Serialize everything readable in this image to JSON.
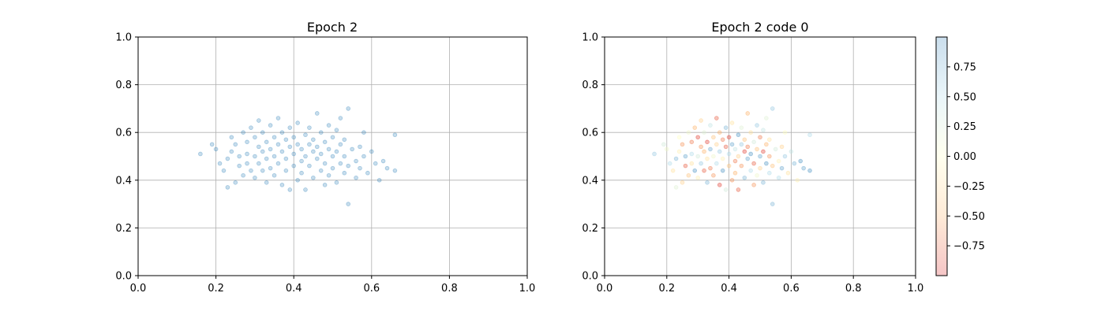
{
  "chart_data": [
    {
      "type": "scatter",
      "title": "Epoch 2",
      "xlabel": "",
      "ylabel": "",
      "xlim": [
        0.0,
        1.0
      ],
      "ylim": [
        0.0,
        1.0
      ],
      "xticks": [
        "0.0",
        "0.2",
        "0.4",
        "0.6",
        "0.8",
        "1.0"
      ],
      "yticks": [
        "0.0",
        "0.2",
        "0.4",
        "0.6",
        "0.8",
        "1.0"
      ],
      "grid": true,
      "marker_color": "#1f77b4",
      "marker_alpha": 0.25,
      "series": [
        {
          "points": [
            [
              0.16,
              0.51
            ],
            [
              0.19,
              0.55
            ],
            [
              0.2,
              0.53
            ],
            [
              0.21,
              0.47
            ],
            [
              0.22,
              0.44
            ],
            [
              0.23,
              0.49
            ],
            [
              0.23,
              0.37
            ],
            [
              0.24,
              0.52
            ],
            [
              0.24,
              0.58
            ],
            [
              0.25,
              0.39
            ],
            [
              0.25,
              0.55
            ],
            [
              0.26,
              0.5
            ],
            [
              0.26,
              0.46
            ],
            [
              0.27,
              0.6
            ],
            [
              0.27,
              0.42
            ],
            [
              0.28,
              0.56
            ],
            [
              0.28,
              0.51
            ],
            [
              0.28,
              0.47
            ],
            [
              0.29,
              0.44
            ],
            [
              0.29,
              0.62
            ],
            [
              0.3,
              0.58
            ],
            [
              0.3,
              0.5
            ],
            [
              0.3,
              0.41
            ],
            [
              0.31,
              0.54
            ],
            [
              0.31,
              0.47
            ],
            [
              0.31,
              0.65
            ],
            [
              0.32,
              0.44
            ],
            [
              0.32,
              0.6
            ],
            [
              0.32,
              0.52
            ],
            [
              0.33,
              0.39
            ],
            [
              0.33,
              0.56
            ],
            [
              0.33,
              0.49
            ],
            [
              0.34,
              0.63
            ],
            [
              0.34,
              0.45
            ],
            [
              0.34,
              0.53
            ],
            [
              0.35,
              0.58
            ],
            [
              0.35,
              0.42
            ],
            [
              0.35,
              0.5
            ],
            [
              0.36,
              0.66
            ],
            [
              0.36,
              0.47
            ],
            [
              0.36,
              0.55
            ],
            [
              0.37,
              0.38
            ],
            [
              0.37,
              0.52
            ],
            [
              0.37,
              0.6
            ],
            [
              0.38,
              0.44
            ],
            [
              0.38,
              0.57
            ],
            [
              0.38,
              0.49
            ],
            [
              0.39,
              0.36
            ],
            [
              0.39,
              0.54
            ],
            [
              0.39,
              0.62
            ],
            [
              0.4,
              0.46
            ],
            [
              0.4,
              0.51
            ],
            [
              0.4,
              0.58
            ],
            [
              0.41,
              0.4
            ],
            [
              0.41,
              0.55
            ],
            [
              0.41,
              0.64
            ],
            [
              0.42,
              0.48
            ],
            [
              0.42,
              0.53
            ],
            [
              0.42,
              0.43
            ],
            [
              0.43,
              0.59
            ],
            [
              0.43,
              0.5
            ],
            [
              0.43,
              0.36
            ],
            [
              0.44,
              0.55
            ],
            [
              0.44,
              0.46
            ],
            [
              0.44,
              0.62
            ],
            [
              0.45,
              0.52
            ],
            [
              0.45,
              0.41
            ],
            [
              0.45,
              0.57
            ],
            [
              0.46,
              0.49
            ],
            [
              0.46,
              0.68
            ],
            [
              0.46,
              0.54
            ],
            [
              0.47,
              0.44
            ],
            [
              0.47,
              0.6
            ],
            [
              0.47,
              0.51
            ],
            [
              0.48,
              0.38
            ],
            [
              0.48,
              0.56
            ],
            [
              0.48,
              0.47
            ],
            [
              0.49,
              0.63
            ],
            [
              0.49,
              0.53
            ],
            [
              0.49,
              0.42
            ],
            [
              0.5,
              0.58
            ],
            [
              0.5,
              0.5
            ],
            [
              0.5,
              0.45
            ],
            [
              0.51,
              0.61
            ],
            [
              0.51,
              0.52
            ],
            [
              0.51,
              0.39
            ],
            [
              0.52,
              0.55
            ],
            [
              0.52,
              0.47
            ],
            [
              0.52,
              0.66
            ],
            [
              0.53,
              0.5
            ],
            [
              0.53,
              0.43
            ],
            [
              0.53,
              0.57
            ],
            [
              0.54,
              0.7
            ],
            [
              0.54,
              0.46
            ],
            [
              0.54,
              0.3
            ],
            [
              0.55,
              0.53
            ],
            [
              0.56,
              0.48
            ],
            [
              0.56,
              0.41
            ],
            [
              0.57,
              0.54
            ],
            [
              0.57,
              0.45
            ],
            [
              0.58,
              0.6
            ],
            [
              0.58,
              0.5
            ],
            [
              0.59,
              0.43
            ],
            [
              0.6,
              0.52
            ],
            [
              0.61,
              0.47
            ],
            [
              0.62,
              0.4
            ],
            [
              0.63,
              0.48
            ],
            [
              0.64,
              0.45
            ],
            [
              0.66,
              0.59
            ],
            [
              0.66,
              0.44
            ]
          ]
        }
      ]
    },
    {
      "type": "scatter",
      "title": "Epoch 2 code 0",
      "xlabel": "",
      "ylabel": "",
      "xlim": [
        0.0,
        1.0
      ],
      "ylim": [
        0.0,
        1.0
      ],
      "xticks": [
        "0.0",
        "0.2",
        "0.4",
        "0.6",
        "0.8",
        "1.0"
      ],
      "yticks": [
        "0.0",
        "0.2",
        "0.4",
        "0.6",
        "0.8",
        "1.0"
      ],
      "grid": true,
      "marker_alpha": 0.35,
      "colormap": "RdYlBu",
      "colorbar": {
        "ticks": [
          "0.75",
          "0.50",
          "0.25",
          "0.00",
          "−0.25",
          "−0.50",
          "−0.75"
        ],
        "tick_values": [
          0.75,
          0.5,
          0.25,
          0.0,
          -0.25,
          -0.5,
          -0.75
        ],
        "range": [
          -1.0,
          1.0
        ],
        "stops": [
          "#d7191c",
          "#fdae61",
          "#ffffbf",
          "#abd9e9",
          "#2c7bb6"
        ]
      },
      "series": [
        {
          "points": [
            [
              0.16,
              0.51,
              0.6
            ],
            [
              0.19,
              0.55,
              0.3
            ],
            [
              0.2,
              0.53,
              0.1
            ],
            [
              0.21,
              0.47,
              0.5
            ],
            [
              0.22,
              0.44,
              -0.2
            ],
            [
              0.23,
              0.49,
              0.7
            ],
            [
              0.23,
              0.37,
              0.2
            ],
            [
              0.24,
              0.52,
              -0.1
            ],
            [
              0.24,
              0.58,
              0.0
            ],
            [
              0.25,
              0.39,
              -0.3
            ],
            [
              0.25,
              0.55,
              -0.6
            ],
            [
              0.26,
              0.5,
              0.8
            ],
            [
              0.26,
              0.46,
              -0.8
            ],
            [
              0.27,
              0.6,
              0.1
            ],
            [
              0.27,
              0.42,
              -0.4
            ],
            [
              0.28,
              0.56,
              -0.7
            ],
            [
              0.28,
              0.51,
              0.5
            ],
            [
              0.28,
              0.47,
              -0.2
            ],
            [
              0.29,
              0.44,
              0.9
            ],
            [
              0.29,
              0.62,
              -0.5
            ],
            [
              0.3,
              0.58,
              -0.9
            ],
            [
              0.3,
              0.5,
              0.3
            ],
            [
              0.3,
              0.41,
              -0.1
            ],
            [
              0.31,
              0.54,
              -0.6
            ],
            [
              0.31,
              0.47,
              0.6
            ],
            [
              0.31,
              0.65,
              -0.3
            ],
            [
              0.32,
              0.44,
              -0.8
            ],
            [
              0.32,
              0.6,
              0.2
            ],
            [
              0.32,
              0.52,
              -0.5
            ],
            [
              0.33,
              0.39,
              0.7
            ],
            [
              0.33,
              0.56,
              -0.9
            ],
            [
              0.33,
              0.49,
              -0.2
            ],
            [
              0.34,
              0.63,
              0.4
            ],
            [
              0.34,
              0.45,
              -0.7
            ],
            [
              0.34,
              0.53,
              0.8
            ],
            [
              0.35,
              0.58,
              -0.4
            ],
            [
              0.35,
              0.42,
              -0.6
            ],
            [
              0.35,
              0.5,
              0.1
            ],
            [
              0.36,
              0.66,
              -0.8
            ],
            [
              0.36,
              0.47,
              0.5
            ],
            [
              0.36,
              0.55,
              -0.3
            ],
            [
              0.37,
              0.38,
              -0.9
            ],
            [
              0.37,
              0.52,
              0.6
            ],
            [
              0.37,
              0.6,
              -0.5
            ],
            [
              0.38,
              0.44,
              0.9
            ],
            [
              0.38,
              0.57,
              -0.7
            ],
            [
              0.38,
              0.49,
              -0.1
            ],
            [
              0.39,
              0.36,
              0.3
            ],
            [
              0.39,
              0.54,
              -0.8
            ],
            [
              0.39,
              0.62,
              0.7
            ],
            [
              0.4,
              0.46,
              -0.4
            ],
            [
              0.4,
              0.51,
              0.5
            ],
            [
              0.4,
              0.58,
              -0.9
            ],
            [
              0.41,
              0.4,
              -0.6
            ],
            [
              0.41,
              0.55,
              0.8
            ],
            [
              0.41,
              0.64,
              -0.2
            ],
            [
              0.42,
              0.48,
              -0.7
            ],
            [
              0.42,
              0.53,
              0.4
            ],
            [
              0.42,
              0.43,
              -0.5
            ],
            [
              0.43,
              0.59,
              0.9
            ],
            [
              0.43,
              0.5,
              -0.3
            ],
            [
              0.43,
              0.36,
              -0.8
            ],
            [
              0.44,
              0.55,
              0.6
            ],
            [
              0.44,
              0.46,
              -0.6
            ],
            [
              0.44,
              0.62,
              0.2
            ],
            [
              0.45,
              0.52,
              -0.9
            ],
            [
              0.45,
              0.41,
              0.7
            ],
            [
              0.45,
              0.57,
              -0.4
            ],
            [
              0.46,
              0.49,
              0.8
            ],
            [
              0.46,
              0.68,
              -0.5
            ],
            [
              0.46,
              0.54,
              -0.7
            ],
            [
              0.47,
              0.44,
              0.5
            ],
            [
              0.47,
              0.6,
              -0.2
            ],
            [
              0.47,
              0.51,
              0.9
            ],
            [
              0.48,
              0.38,
              -0.6
            ],
            [
              0.48,
              0.56,
              0.3
            ],
            [
              0.48,
              0.47,
              -0.8
            ],
            [
              0.49,
              0.63,
              0.6
            ],
            [
              0.49,
              0.53,
              -0.4
            ],
            [
              0.49,
              0.42,
              0.1
            ],
            [
              0.5,
              0.58,
              -0.7
            ],
            [
              0.5,
              0.5,
              0.8
            ],
            [
              0.5,
              0.45,
              -0.3
            ],
            [
              0.51,
              0.61,
              0.4
            ],
            [
              0.51,
              0.52,
              -0.9
            ],
            [
              0.51,
              0.39,
              0.7
            ],
            [
              0.52,
              0.55,
              -0.5
            ],
            [
              0.52,
              0.47,
              0.9
            ],
            [
              0.52,
              0.66,
              0.2
            ],
            [
              0.53,
              0.5,
              -0.6
            ],
            [
              0.53,
              0.43,
              0.5
            ],
            [
              0.53,
              0.57,
              -0.2
            ],
            [
              0.54,
              0.7,
              0.6
            ],
            [
              0.54,
              0.46,
              -0.4
            ],
            [
              0.54,
              0.3,
              0.7
            ],
            [
              0.55,
              0.53,
              0.3
            ],
            [
              0.56,
              0.48,
              -0.1
            ],
            [
              0.56,
              0.41,
              0.5
            ],
            [
              0.57,
              0.54,
              -0.3
            ],
            [
              0.57,
              0.45,
              0.8
            ],
            [
              0.58,
              0.6,
              0.0
            ],
            [
              0.58,
              0.5,
              0.6
            ],
            [
              0.59,
              0.43,
              -0.2
            ],
            [
              0.6,
              0.52,
              0.4
            ],
            [
              0.61,
              0.47,
              0.7
            ],
            [
              0.62,
              0.4,
              -0.1
            ],
            [
              0.63,
              0.48,
              0.9
            ],
            [
              0.64,
              0.45,
              0.8
            ],
            [
              0.66,
              0.59,
              0.5
            ],
            [
              0.66,
              0.44,
              0.9
            ]
          ]
        }
      ]
    }
  ]
}
